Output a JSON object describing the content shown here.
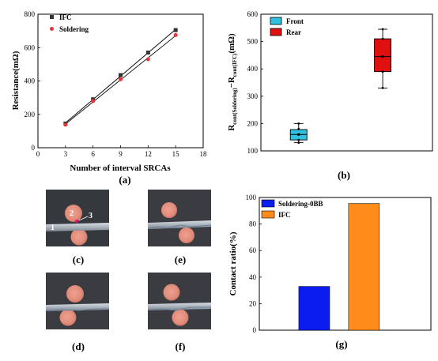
{
  "chart_data": [
    {
      "panel": "(a)",
      "type": "line",
      "xlabel": "Number of interval SRCAs",
      "ylabel": "Resistance(mΩ)",
      "xlim": [
        0,
        18
      ],
      "ylim": [
        0,
        800
      ],
      "xticks": [
        "0",
        "3",
        "6",
        "9",
        "12",
        "15",
        "18"
      ],
      "yticks": [
        "0",
        "200",
        "400",
        "600",
        "800"
      ],
      "legend_position": "top-left",
      "x": [
        3,
        6,
        9,
        12,
        15
      ],
      "series": [
        {
          "name": "IFC",
          "marker": "square",
          "color": "#333333",
          "values": [
            145,
            290,
            435,
            570,
            705
          ]
        },
        {
          "name": "Soldering",
          "marker": "circle",
          "color": "#e8333a",
          "values": [
            138,
            280,
            410,
            530,
            675
          ]
        }
      ]
    },
    {
      "panel": "(b)",
      "type": "box",
      "ylabel": "R_cont(Soldering) − R_cont(IFC) (mΩ)",
      "ylabel_parts": {
        "r1": "R",
        "s1": "cont(Soldering)",
        "mid": "−R",
        "s2": "cont(IFC)",
        "unit": "(mΩ)"
      },
      "ylim": [
        100,
        600
      ],
      "yticks": [
        "100",
        "200",
        "300",
        "400",
        "500",
        "600"
      ],
      "legend_position": "top-left",
      "series": [
        {
          "name": "Front",
          "color": "#30c0e0",
          "min": 130,
          "q1": 140,
          "median": 160,
          "mean": 160,
          "q3": 178,
          "max": 200,
          "points": [
            200,
            180,
            160,
            140,
            130
          ]
        },
        {
          "name": "Rear",
          "color": "#e01010",
          "min": 330,
          "q1": 390,
          "median": 445,
          "mean": 445,
          "q3": 510,
          "max": 545,
          "points": [
            545,
            510,
            445,
            390,
            330
          ]
        }
      ]
    },
    {
      "panel": "(g)",
      "type": "bar",
      "ylabel": "Contact ratio(%)",
      "ylim": [
        0,
        100
      ],
      "yticks": [
        "0",
        "20",
        "40",
        "60",
        "80",
        "100"
      ],
      "legend_position": "top-left",
      "series": [
        {
          "name": "Soldering-0BB",
          "color": "#0a1cf0",
          "value": 33
        },
        {
          "name": "IFC",
          "color": "#ff8c1a",
          "value": 95.5
        }
      ]
    }
  ],
  "photos": [
    {
      "panel": "(c)",
      "markers": [
        "1",
        "2",
        "3"
      ]
    },
    {
      "panel": "(e)",
      "markers": []
    },
    {
      "panel": "(d)",
      "markers": []
    },
    {
      "panel": "(f)",
      "markers": []
    }
  ]
}
